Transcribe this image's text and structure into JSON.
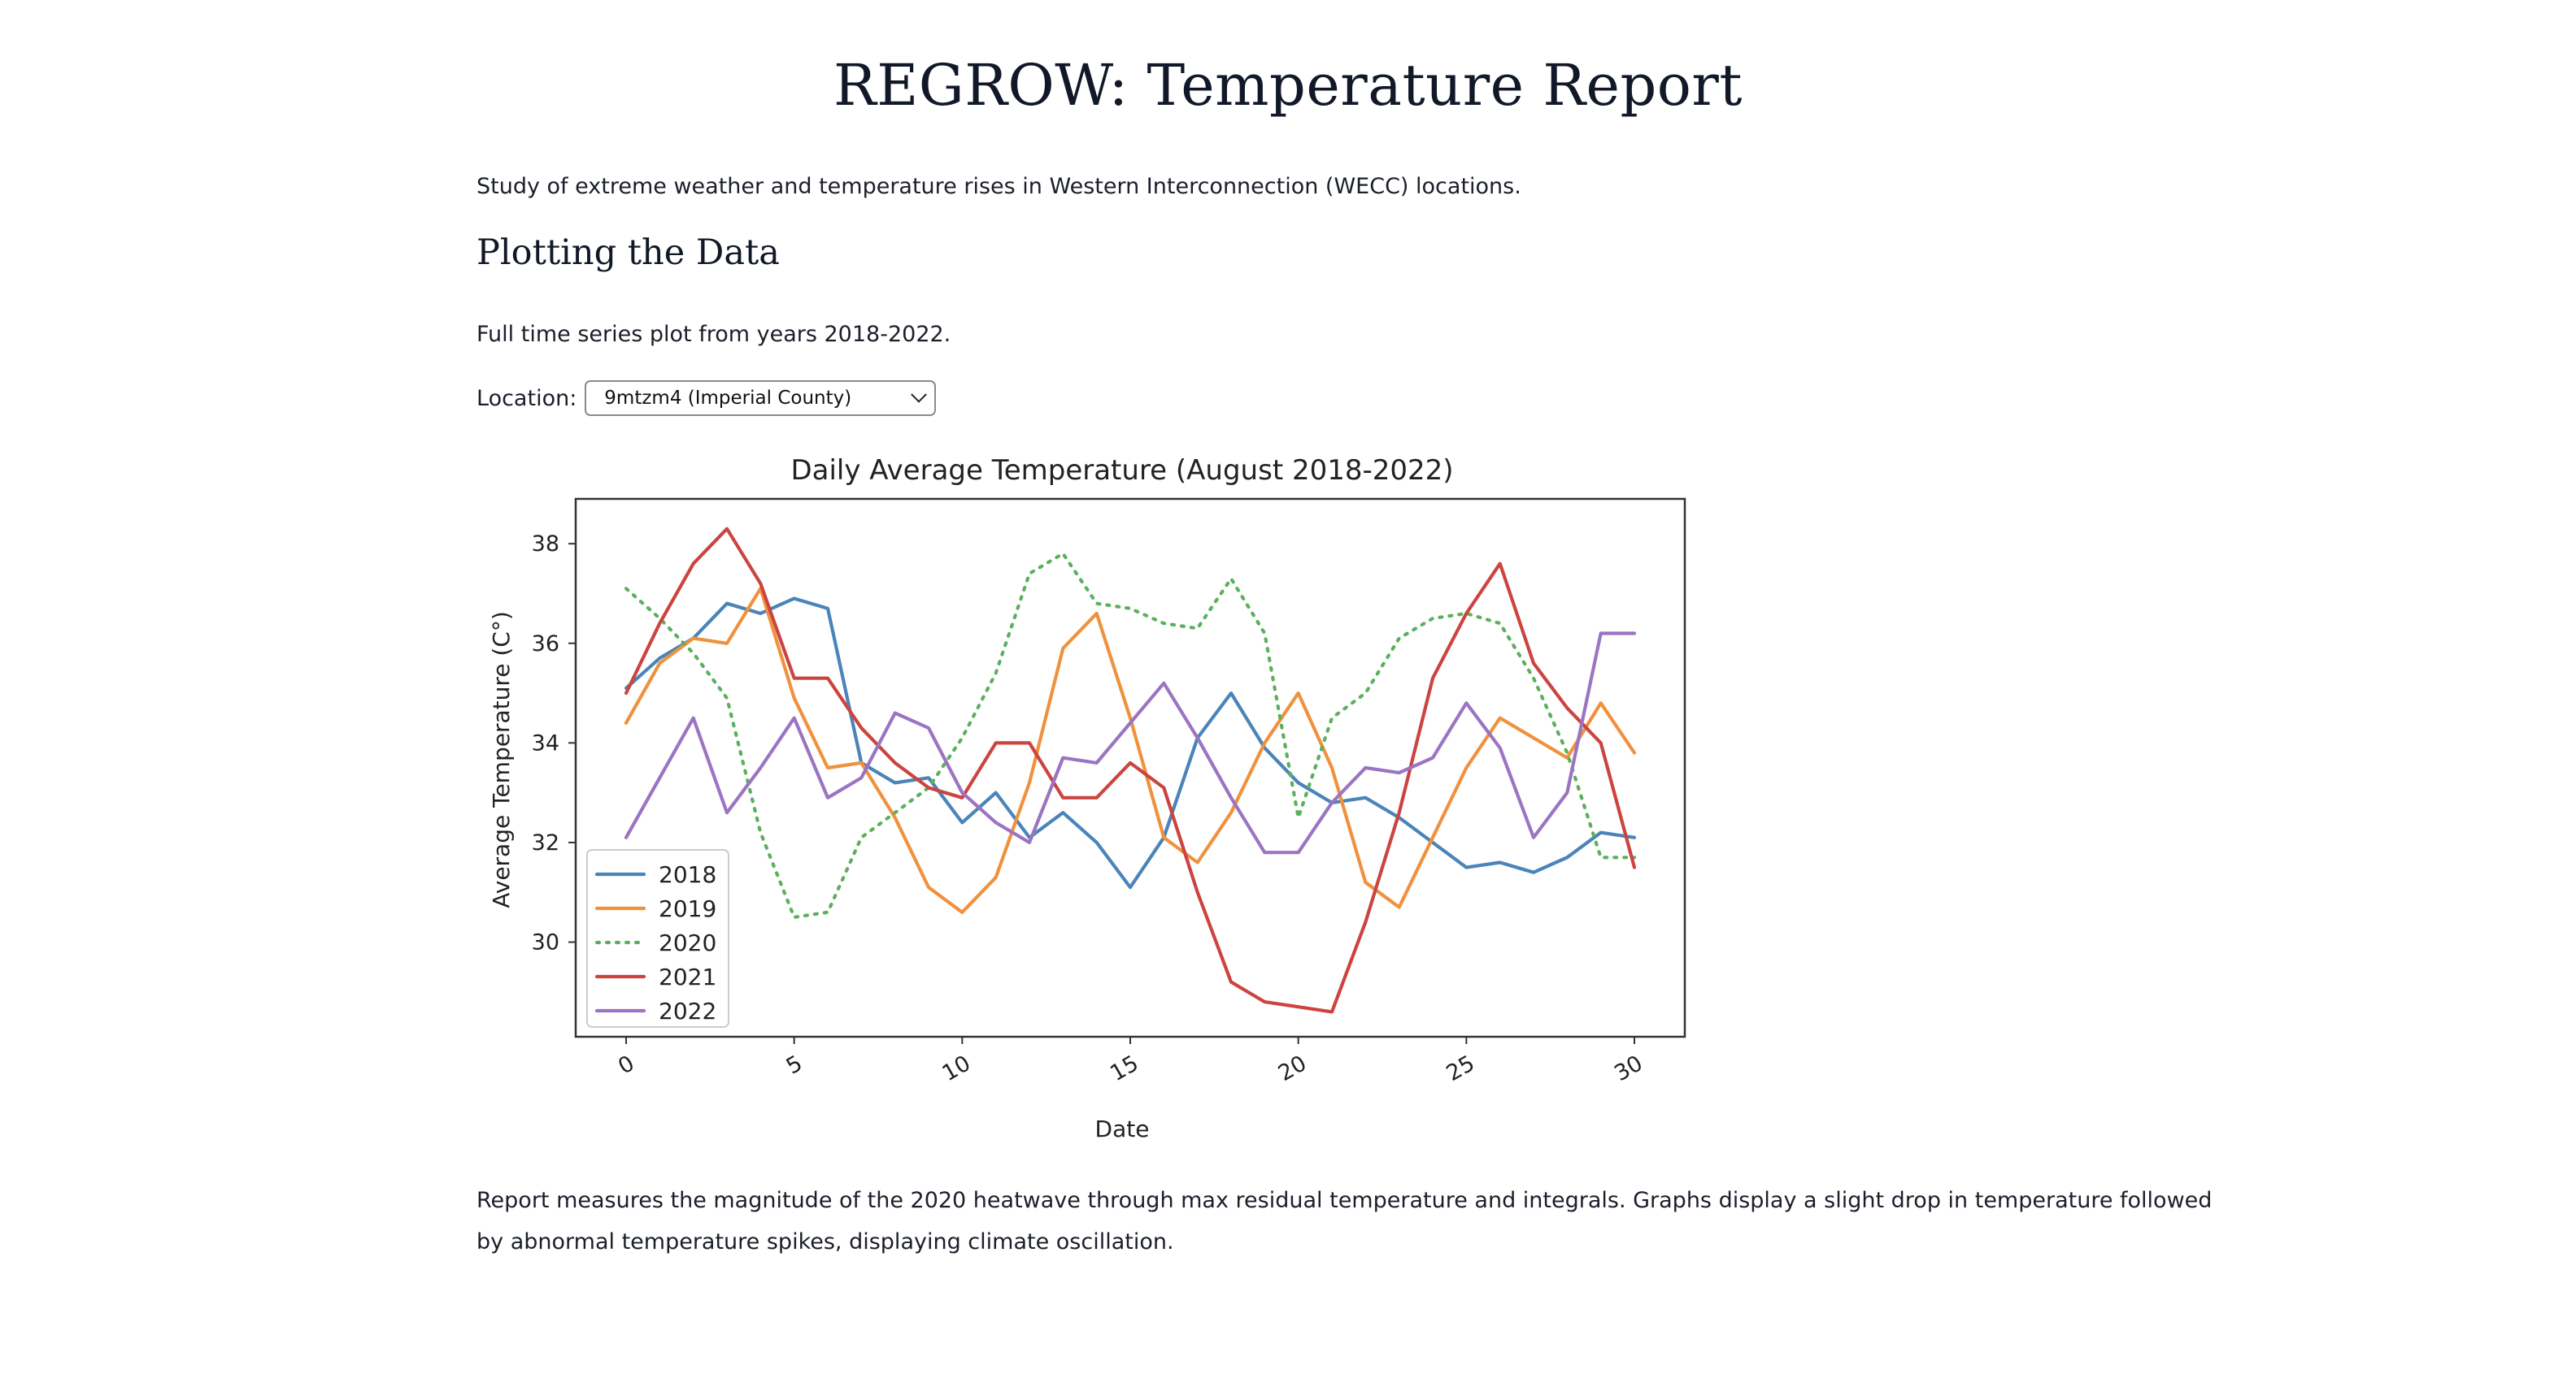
{
  "page": {
    "title": "REGROW: Temperature Report",
    "intro": "Study of extreme weather and temperature rises in Western Interconnection (WECC) locations.",
    "section_heading": "Plotting the Data",
    "subtitle": "Full time series plot from years 2018-2022.",
    "location_label": "Location:",
    "location_selected": "9mtzm4 (Imperial County)",
    "report_text": "Report measures the magnitude of the 2020 heatwave through max residual temperature and integrals. Graphs display a slight drop in temperature followed by abnormal temperature spikes, displaying climate oscillation."
  },
  "chart_data": {
    "type": "line",
    "title": "Daily Average Temperature (August 2018-2022)",
    "xlabel": "Date",
    "ylabel": "Average Temperature (C°)",
    "xlim": [
      -1.5,
      31.5
    ],
    "ylim": [
      28.1,
      38.9
    ],
    "xticks": [
      0,
      5,
      10,
      15,
      20,
      25,
      30
    ],
    "yticks": [
      30,
      32,
      34,
      36,
      38
    ],
    "legend_position": "lower-left",
    "grid": false,
    "x": [
      0,
      1,
      2,
      3,
      4,
      5,
      6,
      7,
      8,
      9,
      10,
      11,
      12,
      13,
      14,
      15,
      16,
      17,
      18,
      19,
      20,
      21,
      22,
      23,
      24,
      25,
      26,
      27,
      28,
      29,
      30
    ],
    "series": [
      {
        "name": "2018",
        "color": "#4a84b9",
        "dash": "solid",
        "values": [
          35.1,
          35.7,
          36.1,
          36.8,
          36.6,
          36.9,
          36.7,
          33.6,
          33.2,
          33.3,
          32.4,
          33.0,
          32.1,
          32.6,
          32.0,
          31.1,
          32.1,
          34.1,
          35.0,
          33.9,
          33.2,
          32.8,
          32.9,
          32.5,
          32.0,
          31.5,
          31.6,
          31.4,
          31.7,
          32.2,
          32.1
        ]
      },
      {
        "name": "2019",
        "color": "#f0913e",
        "dash": "solid",
        "values": [
          34.4,
          35.6,
          36.1,
          36.0,
          37.1,
          34.9,
          33.5,
          33.6,
          32.5,
          31.1,
          30.6,
          31.3,
          33.2,
          35.9,
          36.6,
          34.5,
          32.1,
          31.6,
          32.6,
          34.0,
          35.0,
          33.5,
          31.2,
          30.7,
          32.1,
          33.5,
          34.5,
          34.1,
          33.7,
          34.8,
          33.8
        ]
      },
      {
        "name": "2020",
        "color": "#5cb05c",
        "dash": "dotted",
        "values": [
          37.1,
          36.5,
          35.8,
          34.9,
          32.2,
          30.5,
          30.6,
          32.1,
          32.6,
          33.1,
          34.1,
          35.4,
          37.4,
          37.8,
          36.8,
          36.7,
          36.4,
          36.3,
          37.3,
          36.2,
          32.5,
          34.5,
          35.0,
          36.1,
          36.5,
          36.6,
          36.4,
          35.3,
          33.8,
          31.7,
          31.7
        ]
      },
      {
        "name": "2021",
        "color": "#cc4440",
        "dash": "solid",
        "values": [
          35.0,
          36.4,
          37.6,
          38.3,
          37.2,
          35.3,
          35.3,
          34.3,
          33.6,
          33.1,
          32.9,
          34.0,
          34.0,
          32.9,
          32.9,
          33.6,
          33.1,
          31.0,
          29.2,
          28.8,
          28.7,
          28.6,
          30.4,
          32.6,
          35.3,
          36.6,
          37.6,
          35.6,
          34.7,
          34.0,
          31.5
        ]
      },
      {
        "name": "2022",
        "color": "#9b74c2",
        "dash": "solid",
        "values": [
          32.1,
          33.3,
          34.5,
          32.6,
          33.5,
          34.5,
          32.9,
          33.3,
          34.6,
          34.3,
          33.0,
          32.4,
          32.0,
          33.7,
          33.6,
          34.4,
          35.2,
          34.1,
          32.9,
          31.8,
          31.8,
          32.8,
          33.5,
          33.4,
          33.7,
          34.8,
          33.9,
          32.1,
          33.0,
          36.2,
          36.2
        ]
      }
    ]
  }
}
